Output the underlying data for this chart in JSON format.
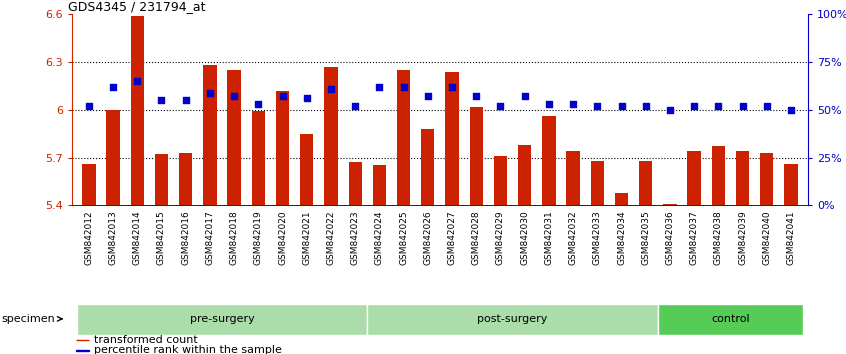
{
  "title": "GDS4345 / 231794_at",
  "categories": [
    "GSM842012",
    "GSM842013",
    "GSM842014",
    "GSM842015",
    "GSM842016",
    "GSM842017",
    "GSM842018",
    "GSM842019",
    "GSM842020",
    "GSM842021",
    "GSM842022",
    "GSM842023",
    "GSM842024",
    "GSM842025",
    "GSM842026",
    "GSM842027",
    "GSM842028",
    "GSM842029",
    "GSM842030",
    "GSM842031",
    "GSM842032",
    "GSM842033",
    "GSM842034",
    "GSM842035",
    "GSM842036",
    "GSM842037",
    "GSM842038",
    "GSM842039",
    "GSM842040",
    "GSM842041"
  ],
  "bar_values": [
    5.66,
    6.0,
    6.59,
    5.72,
    5.73,
    6.28,
    6.25,
    5.99,
    6.12,
    5.85,
    6.27,
    5.67,
    5.65,
    6.25,
    5.88,
    6.24,
    6.02,
    5.71,
    5.78,
    5.96,
    5.74,
    5.68,
    5.48,
    5.68,
    5.41,
    5.74,
    5.77,
    5.74,
    5.73,
    5.66
  ],
  "percentile_values": [
    52,
    62,
    65,
    55,
    55,
    59,
    57,
    53,
    57,
    56,
    61,
    52,
    62,
    62,
    57,
    62,
    57,
    52,
    57,
    53,
    53,
    52,
    52,
    52,
    50,
    52,
    52,
    52,
    52,
    50
  ],
  "ymin": 5.4,
  "ymax": 6.6,
  "yticks": [
    5.4,
    5.7,
    6.0,
    6.3,
    6.6
  ],
  "ytick_labels": [
    "5.4",
    "5.7",
    "6",
    "6.3",
    "6.6"
  ],
  "right_yticks": [
    0,
    25,
    50,
    75,
    100
  ],
  "right_ytick_labels": [
    "0%",
    "25%",
    "50%",
    "75%",
    "100%"
  ],
  "bar_color": "#cc2200",
  "dot_color": "#0000cc",
  "bar_bottom": 5.4,
  "groups": [
    {
      "label": "pre-surgery",
      "start": 0,
      "end": 12,
      "color": "#aaddaa"
    },
    {
      "label": "post-surgery",
      "start": 12,
      "end": 24,
      "color": "#aaddaa"
    },
    {
      "label": "control",
      "start": 24,
      "end": 30,
      "color": "#55cc55"
    }
  ],
  "specimen_label": "specimen",
  "legend_items": [
    {
      "label": "transformed count",
      "color": "#cc2200"
    },
    {
      "label": "percentile rank within the sample",
      "color": "#0000cc"
    }
  ],
  "xtick_bg": "#cccccc",
  "grid_linestyle": "dotted",
  "grid_linewidth": 0.8
}
